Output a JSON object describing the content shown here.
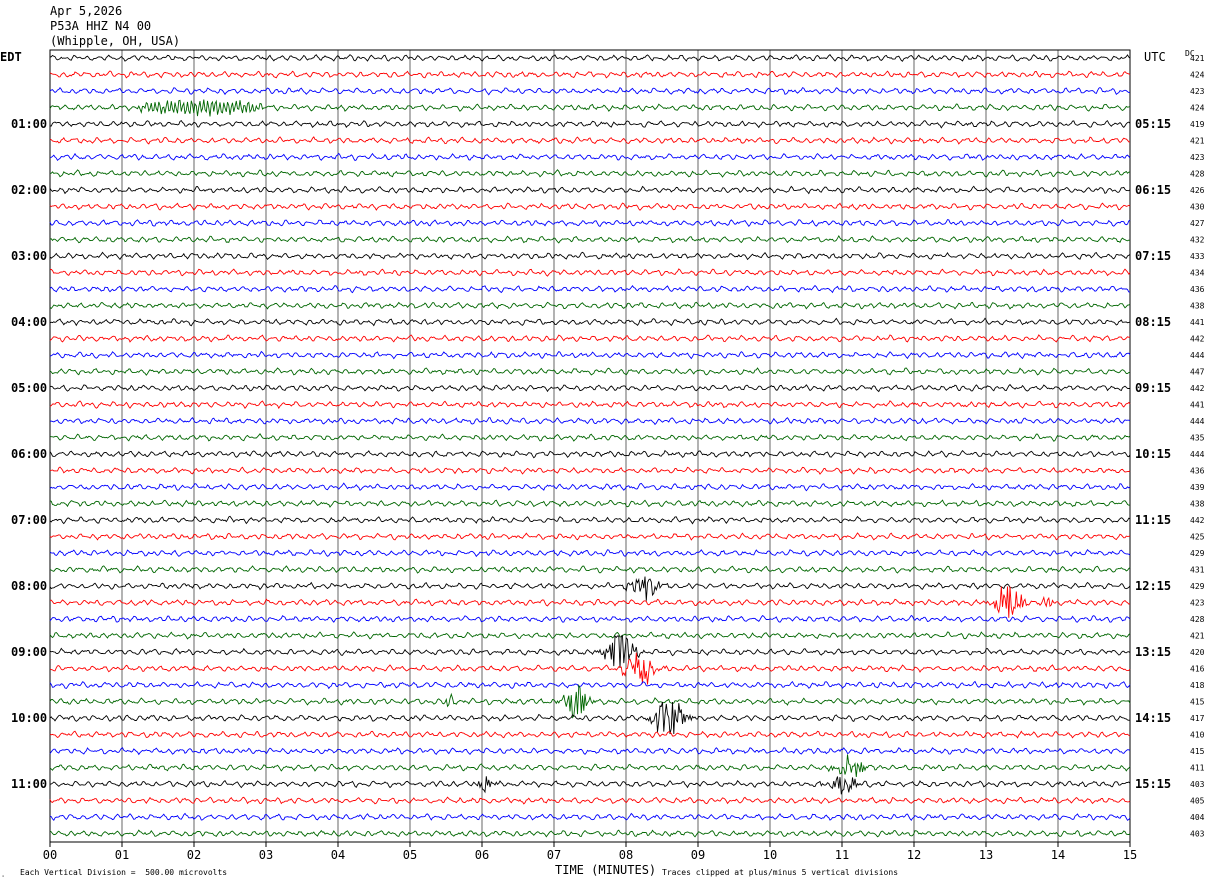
{
  "header": {
    "date": "Apr 5,2026",
    "station": "P53A HHZ N4 00",
    "location": "(Whipple, OH, USA)"
  },
  "left_tz": "EDT",
  "right_tz": "UTC",
  "dc_label": "DC",
  "footer": {
    "scale_note": "Each Vertical Division =  500.00 microvolts",
    "xlabel": "TIME (MINUTES)",
    "clip_note": "Traces clipped at plus/minus 5 vertical divisions"
  },
  "colors": {
    "black": "#000000",
    "red": "#ff0000",
    "blue": "#0000ff",
    "green": "#006600",
    "grid": "#000000"
  },
  "chart_data": {
    "type": "line",
    "title": "P53A HHZ N4 00",
    "xlabel": "TIME (MINUTES)",
    "xlim": [
      0,
      15
    ],
    "x_ticks": [
      "00",
      "01",
      "02",
      "03",
      "04",
      "05",
      "06",
      "07",
      "08",
      "09",
      "10",
      "11",
      "12",
      "13",
      "14",
      "15"
    ],
    "left_hour_labels": [
      "01:00",
      "02:00",
      "03:00",
      "04:00",
      "05:00",
      "06:00",
      "07:00",
      "08:00",
      "09:00",
      "10:00",
      "11:00"
    ],
    "right_hour_labels": [
      "05:15",
      "06:15",
      "07:15",
      "08:15",
      "09:15",
      "10:15",
      "11:15",
      "12:15",
      "13:15",
      "14:15",
      "15:15"
    ],
    "trace_color_cycle": [
      "black",
      "red",
      "blue",
      "green"
    ],
    "dc_offsets": [
      421,
      424,
      423,
      424,
      419,
      421,
      423,
      428,
      426,
      430,
      427,
      432,
      433,
      434,
      436,
      438,
      441,
      442,
      444,
      447,
      442,
      441,
      444,
      435,
      444,
      436,
      439,
      438,
      442,
      425,
      429,
      431,
      429,
      423,
      428,
      421,
      420,
      416,
      418,
      415,
      417,
      410,
      415,
      411,
      403,
      405,
      404,
      403
    ],
    "events": [
      {
        "trace": 3,
        "minute": 2.1,
        "amplitude": 2.2,
        "duration_min": 1.8,
        "kind": "sinusoid"
      },
      {
        "trace": 32,
        "minute": 8.3,
        "amplitude": 2.5,
        "duration_min": 0.5,
        "kind": "burst"
      },
      {
        "trace": 33,
        "minute": 13.3,
        "amplitude": 4.5,
        "duration_min": 0.4,
        "kind": "burst"
      },
      {
        "trace": 33,
        "minute": 13.85,
        "amplitude": 1.2,
        "duration_min": 0.2,
        "kind": "burst"
      },
      {
        "trace": 36,
        "minute": 7.9,
        "amplitude": 5.0,
        "duration_min": 0.4,
        "kind": "burst"
      },
      {
        "trace": 37,
        "minute": 8.2,
        "amplitude": 5.0,
        "duration_min": 0.4,
        "kind": "burst"
      },
      {
        "trace": 39,
        "minute": 7.3,
        "amplitude": 4.0,
        "duration_min": 0.35,
        "kind": "burst"
      },
      {
        "trace": 39,
        "minute": 5.55,
        "amplitude": 1.2,
        "duration_min": 0.15,
        "kind": "burst"
      },
      {
        "trace": 40,
        "minute": 8.6,
        "amplitude": 5.0,
        "duration_min": 0.45,
        "kind": "burst"
      },
      {
        "trace": 43,
        "minute": 11.1,
        "amplitude": 2.5,
        "duration_min": 0.4,
        "kind": "burst"
      },
      {
        "trace": 44,
        "minute": 11.0,
        "amplitude": 2.0,
        "duration_min": 0.4,
        "kind": "burst"
      },
      {
        "trace": 44,
        "minute": 6.05,
        "amplitude": 1.5,
        "duration_min": 0.25,
        "kind": "burst"
      }
    ]
  }
}
